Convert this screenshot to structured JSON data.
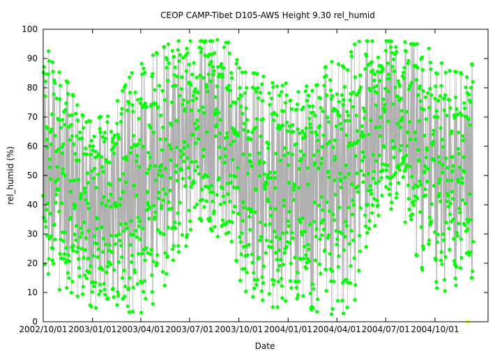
{
  "chart_data": {
    "type": "scatter",
    "title": "CEOP CAMP-Tibet D105-AWS Height 9.30 rel_humid",
    "xlabel": "Date",
    "ylabel": "rel_humid (%)",
    "ylim": [
      0,
      100
    ],
    "xlim": [
      "2002-10-01",
      "2005-01-08"
    ],
    "yticks": [
      0,
      10,
      20,
      30,
      40,
      50,
      60,
      70,
      80,
      90,
      100
    ],
    "xticks": [
      "2002/10/01",
      "2003/01/01",
      "2003/04/01",
      "2003/07/01",
      "2003/10/01",
      "2004/01/01",
      "2004/04/01",
      "2004/07/01",
      "2004/10/01"
    ],
    "grid": false,
    "legend": "none",
    "series": [
      {
        "color": "#00ff00",
        "line_color": "#b0b0b0",
        "x": [
          "2002-10-01",
          "2002-10-10",
          "2002-10-20",
          "2002-11-01",
          "2002-11-15",
          "2002-12-01",
          "2002-12-15",
          "2003-01-01",
          "2003-01-15",
          "2003-02-01",
          "2003-02-15",
          "2003-03-01",
          "2003-03-15",
          "2003-04-01",
          "2003-04-15",
          "2003-05-01",
          "2003-05-15",
          "2003-06-01",
          "2003-06-15",
          "2003-07-01",
          "2003-07-15",
          "2003-08-01",
          "2003-08-15",
          "2003-09-01",
          "2003-09-15",
          "2003-10-01",
          "2003-10-15",
          "2003-11-01",
          "2003-11-15",
          "2003-12-01",
          "2003-12-15",
          "2004-01-01",
          "2004-01-15",
          "2004-02-01",
          "2004-02-15",
          "2004-03-01",
          "2004-03-15",
          "2004-04-01",
          "2004-04-15",
          "2004-05-01",
          "2004-05-15",
          "2004-06-01",
          "2004-06-15",
          "2004-07-01",
          "2004-07-15",
          "2004-08-01",
          "2004-08-15",
          "2004-09-01",
          "2004-09-15",
          "2004-10-01",
          "2004-10-15",
          "2004-11-01",
          "2004-11-15",
          "2004-12-01"
        ],
        "ymin": [
          18,
          15,
          12,
          10,
          8,
          7,
          6,
          5,
          4,
          4,
          5,
          4,
          3,
          2,
          4,
          8,
          10,
          15,
          22,
          28,
          32,
          35,
          30,
          28,
          22,
          15,
          10,
          8,
          6,
          5,
          5,
          4,
          4,
          5,
          4,
          3,
          3,
          2,
          3,
          5,
          15,
          25,
          35,
          40,
          38,
          35,
          30,
          20,
          15,
          12,
          10,
          10,
          12,
          15
        ],
        "ymax": [
          92,
          93,
          88,
          85,
          82,
          75,
          70,
          68,
          70,
          72,
          75,
          80,
          85,
          88,
          90,
          92,
          94,
          96,
          96,
          96,
          96,
          96,
          96,
          97,
          95,
          88,
          85,
          85,
          84,
          82,
          80,
          82,
          78,
          80,
          82,
          85,
          88,
          90,
          93,
          95,
          96,
          96,
          96,
          96,
          96,
          96,
          95,
          95,
          94,
          92,
          88,
          86,
          85,
          88
        ]
      }
    ],
    "extra_points": [
      {
        "x": "2004-12-01",
        "y": 0,
        "color": "#ffff00"
      }
    ]
  }
}
